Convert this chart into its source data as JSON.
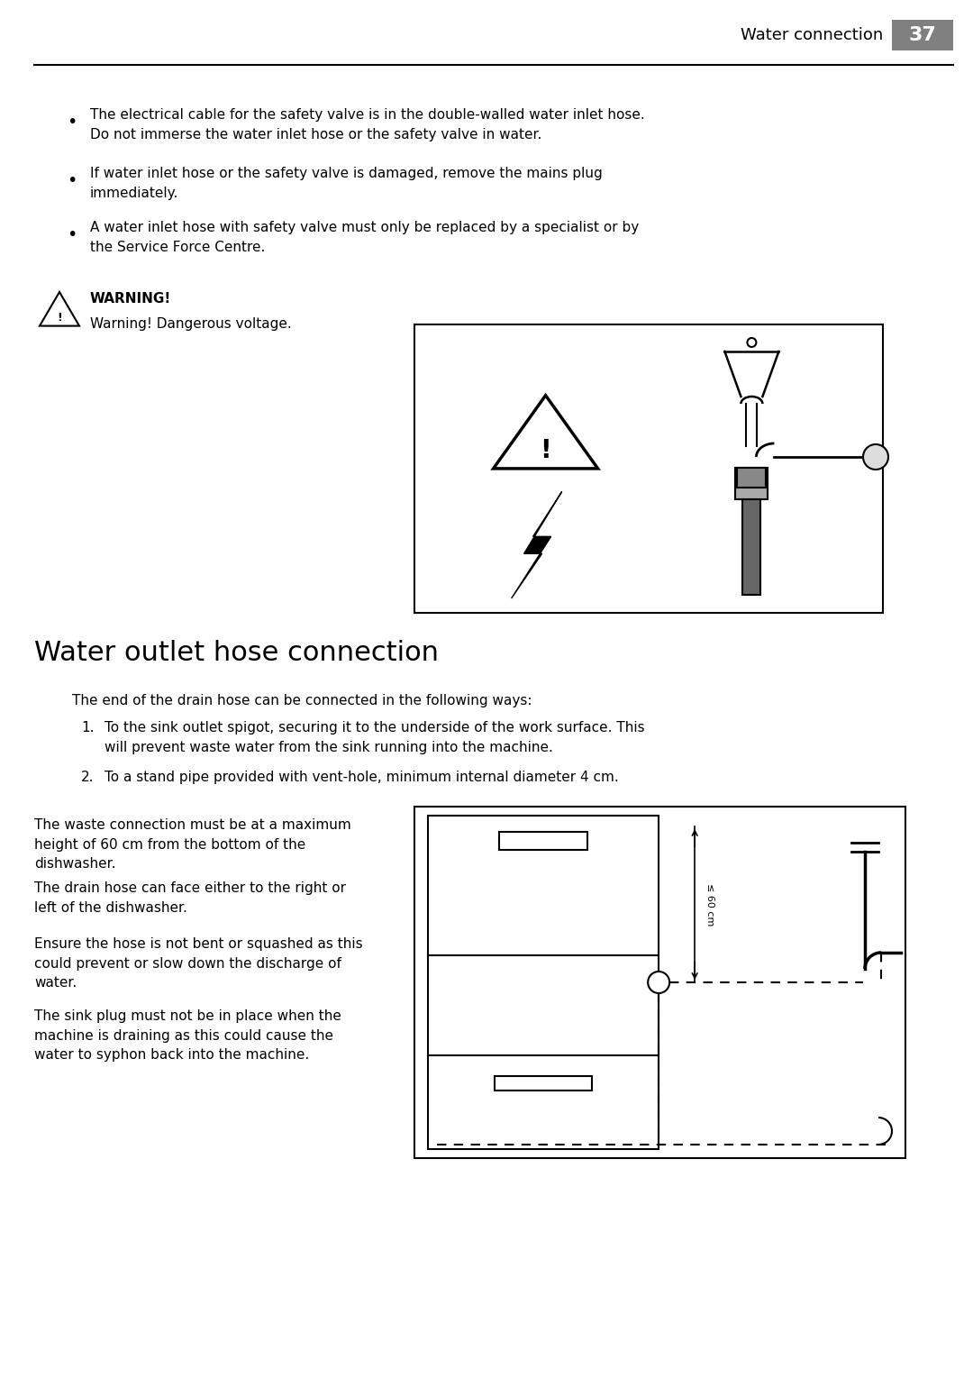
{
  "page_width": 10.8,
  "page_height": 15.29,
  "bg_color": "#ffffff",
  "header_text": "Water connection",
  "header_page": "37",
  "header_bg": "#808080",
  "bullet_points": [
    "The electrical cable for the safety valve is in the double-walled water inlet hose.\nDo not immerse the water inlet hose or the safety valve in water.",
    "If water inlet hose or the safety valve is damaged, remove the mains plug\nimmediately.",
    "A water inlet hose with safety valve must only be replaced by a specialist or by\nthe Service Force Centre."
  ],
  "warning_title": "WARNING!",
  "warning_text": "Warning! Dangerous voltage.",
  "section_title": "Water outlet hose connection",
  "intro_text": "The end of the drain hose can be connected in the following ways:",
  "numbered_items": [
    "To the sink outlet spigot, securing it to the underside of the work surface. This\nwill prevent waste water from the sink running into the machine.",
    "To a stand pipe provided with vent-hole, minimum internal diameter 4 cm."
  ],
  "para1": "The waste connection must be at a maximum\nheight of 60 cm from the bottom of the\ndishwasher.",
  "para2": "The drain hose can face either to the right or\nleft of the dishwasher.",
  "para3": "Ensure the hose is not bent or squashed as this\ncould prevent or slow down the discharge of\nwater.",
  "para4": "The sink plug must not be in place when the\nmachine is draining as this could cause the\nwater to syphon back into the machine.",
  "font_body": 11.0,
  "font_header": 11.0,
  "font_section": 22,
  "font_warning": 11.0
}
